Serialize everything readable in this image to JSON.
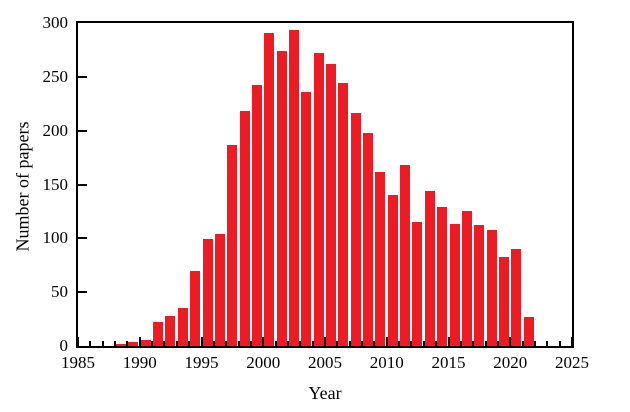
{
  "chart_data": {
    "type": "bar",
    "title": "",
    "xlabel": "Year",
    "ylabel": "Number of papers",
    "bar_color": "#ed1c24",
    "axis_color": "#000000",
    "grid": false,
    "legend": "none",
    "xlim": [
      1985,
      2025
    ],
    "ylim": [
      0,
      300
    ],
    "x_major_ticks": [
      1985,
      1990,
      1995,
      2000,
      2005,
      2010,
      2015,
      2020,
      2025
    ],
    "x_minor_tick_interval_years": 1,
    "y_major_ticks": [
      0,
      50,
      100,
      150,
      200,
      250,
      300
    ],
    "categories": [
      1988,
      1989,
      1990,
      1991,
      1992,
      1993,
      1994,
      1995,
      1996,
      1997,
      1998,
      1999,
      2000,
      2001,
      2002,
      2003,
      2004,
      2005,
      2006,
      2007,
      2008,
      2009,
      2010,
      2011,
      2012,
      2013,
      2014,
      2015,
      2016,
      2017,
      2018,
      2019,
      2020,
      2021
    ],
    "values": [
      2,
      4,
      6,
      22,
      28,
      35,
      70,
      99,
      104,
      187,
      218,
      242,
      291,
      274,
      294,
      236,
      272,
      262,
      244,
      216,
      198,
      162,
      140,
      168,
      115,
      144,
      129,
      113,
      125,
      112,
      108,
      83,
      90,
      27
    ]
  }
}
